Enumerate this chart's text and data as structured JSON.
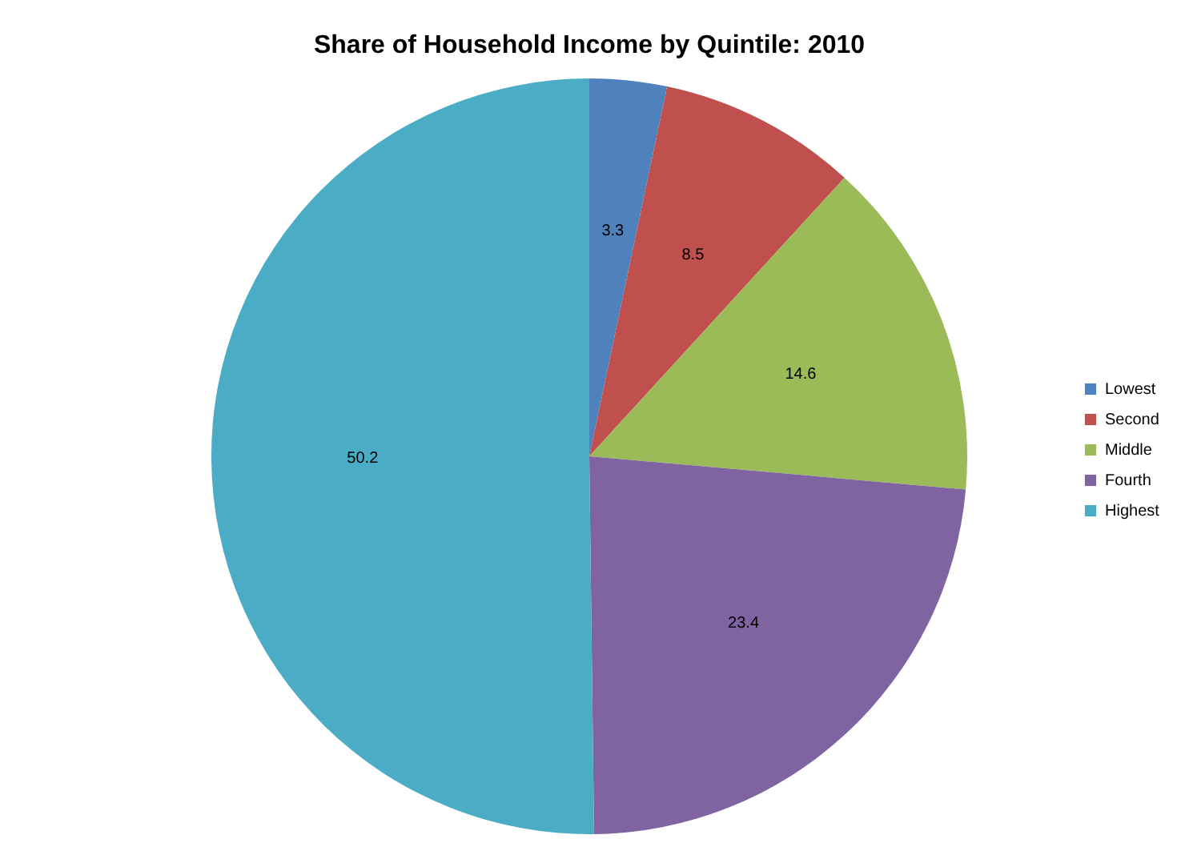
{
  "chart_data": {
    "type": "pie",
    "title": "Share of Household Income by Quintile: 2010",
    "categories": [
      "Lowest",
      "Second",
      "Middle",
      "Fourth",
      "Highest"
    ],
    "values": [
      3.3,
      8.5,
      14.6,
      23.4,
      50.2
    ],
    "colors": [
      "#4f81bd",
      "#c0504d",
      "#9bbb59",
      "#8064a2",
      "#4bacc6"
    ],
    "data_labels": true,
    "legend": "right"
  }
}
